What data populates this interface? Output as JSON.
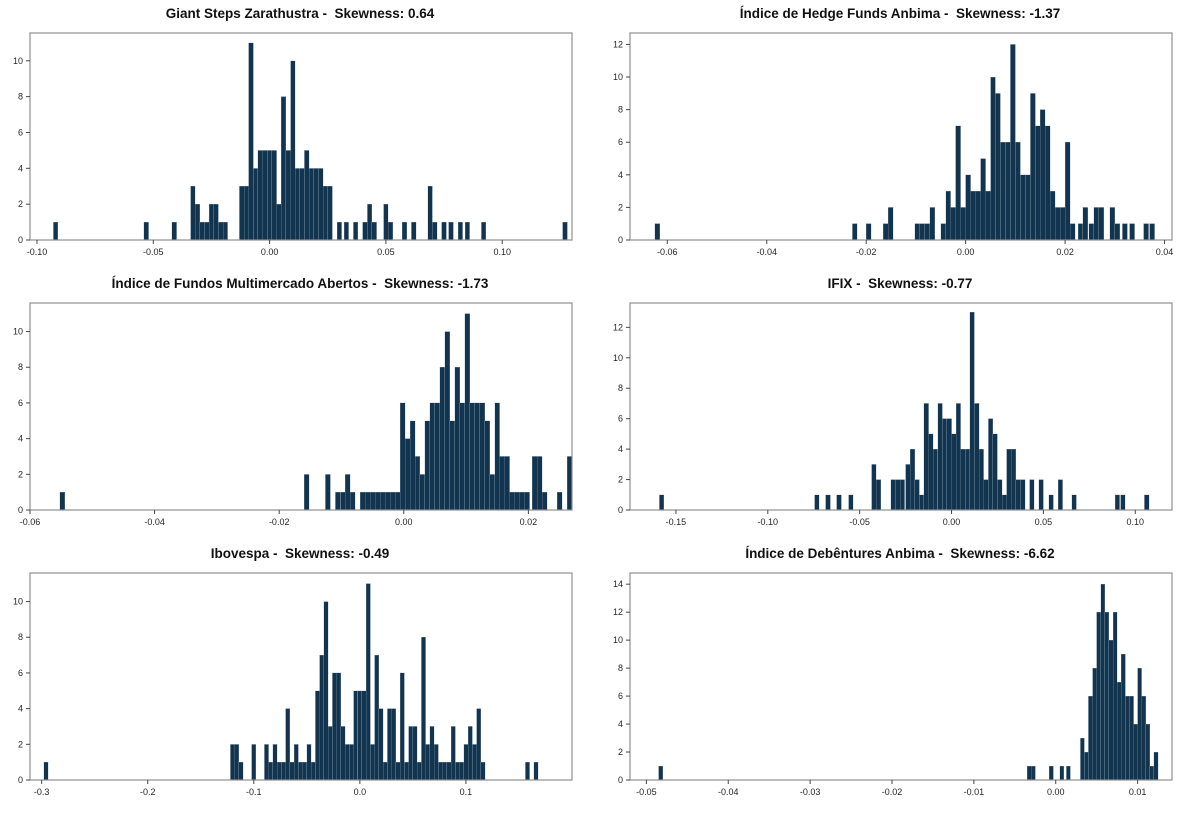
{
  "figure": {
    "kind": "matplotlib-style histogram grid",
    "rows": 3,
    "cols": 2,
    "background": "#ffffff"
  },
  "colors": {
    "bar": "#12344e",
    "bar_edge": "rgba(150,172,190,0.55)",
    "spine": "#8f8f8f",
    "tick_mark": "#444444",
    "tick_label": "#262626",
    "title": "#111111"
  },
  "chart_data": [
    {
      "type": "bar",
      "subtype": "histogram",
      "title": "Giant Steps Zarathustra -  Skewness: 0.64",
      "series_name": "Giant Steps Zarathustra",
      "skewness": 0.64,
      "xlim": [
        -0.103,
        0.13
      ],
      "ylim": [
        0,
        11.55
      ],
      "bin_width": 0.002,
      "xticks": {
        "values": [
          -0.1,
          -0.05,
          0.0,
          0.05,
          0.1
        ],
        "labels": [
          "-0.10",
          "-0.05",
          "0.00",
          "0.05",
          "0.10"
        ]
      },
      "yticks": [
        0,
        2,
        4,
        6,
        8,
        10
      ],
      "bars": [
        [
          -0.093,
          1
        ],
        [
          -0.054,
          1
        ],
        [
          -0.042,
          1
        ],
        [
          -0.034,
          3
        ],
        [
          -0.032,
          2
        ],
        [
          -0.03,
          1
        ],
        [
          -0.028,
          1
        ],
        [
          -0.026,
          2
        ],
        [
          -0.024,
          2
        ],
        [
          -0.022,
          1
        ],
        [
          -0.02,
          1
        ],
        [
          -0.013,
          3
        ],
        [
          -0.011,
          3
        ],
        [
          -0.009,
          11
        ],
        [
          -0.007,
          4
        ],
        [
          -0.005,
          5
        ],
        [
          -0.003,
          5
        ],
        [
          -0.001,
          5
        ],
        [
          0.001,
          5
        ],
        [
          0.003,
          2
        ],
        [
          0.005,
          8
        ],
        [
          0.007,
          5
        ],
        [
          0.009,
          10
        ],
        [
          0.011,
          4
        ],
        [
          0.013,
          4
        ],
        [
          0.015,
          5
        ],
        [
          0.017,
          4
        ],
        [
          0.019,
          4
        ],
        [
          0.021,
          4
        ],
        [
          0.023,
          3
        ],
        [
          0.025,
          3
        ],
        [
          0.029,
          1
        ],
        [
          0.032,
          1
        ],
        [
          0.036,
          1
        ],
        [
          0.04,
          1
        ],
        [
          0.042,
          2
        ],
        [
          0.044,
          1
        ],
        [
          0.049,
          2
        ],
        [
          0.051,
          1
        ],
        [
          0.057,
          1
        ],
        [
          0.061,
          1
        ],
        [
          0.068,
          3
        ],
        [
          0.07,
          1
        ],
        [
          0.074,
          1
        ],
        [
          0.077,
          1
        ],
        [
          0.081,
          1
        ],
        [
          0.084,
          1
        ],
        [
          0.091,
          1
        ],
        [
          0.126,
          1
        ]
      ]
    },
    {
      "type": "bar",
      "subtype": "histogram",
      "title": "Índice de Hedge Funds Anbima -  Skewness: -1.37",
      "series_name": "Índice de Hedge Funds Anbima",
      "skewness": -1.37,
      "xlim": [
        -0.0675,
        0.0415
      ],
      "ylim": [
        0,
        12.7
      ],
      "bin_width": 0.001,
      "xticks": {
        "values": [
          -0.06,
          -0.04,
          -0.02,
          0.0,
          0.02,
          0.04
        ],
        "labels": [
          "-0.06",
          "-0.04",
          "-0.02",
          "0.00",
          "0.02",
          "0.04"
        ]
      },
      "yticks": [
        0,
        2,
        4,
        6,
        8,
        10,
        12
      ],
      "bars": [
        [
          -0.0625,
          1
        ],
        [
          -0.0228,
          1
        ],
        [
          -0.02,
          1
        ],
        [
          -0.0166,
          1
        ],
        [
          -0.0156,
          2
        ],
        [
          -0.0102,
          1
        ],
        [
          -0.0092,
          1
        ],
        [
          -0.0082,
          1
        ],
        [
          -0.0072,
          2
        ],
        [
          -0.005,
          1
        ],
        [
          -0.004,
          3
        ],
        [
          -0.003,
          2
        ],
        [
          -0.002,
          7
        ],
        [
          -0.001,
          2
        ],
        [
          0.0,
          4
        ],
        [
          0.001,
          3
        ],
        [
          0.002,
          3
        ],
        [
          0.003,
          5
        ],
        [
          0.004,
          3
        ],
        [
          0.005,
          10
        ],
        [
          0.006,
          9
        ],
        [
          0.007,
          6
        ],
        [
          0.008,
          6
        ],
        [
          0.009,
          12
        ],
        [
          0.01,
          6
        ],
        [
          0.011,
          4
        ],
        [
          0.012,
          4
        ],
        [
          0.013,
          9
        ],
        [
          0.014,
          7
        ],
        [
          0.015,
          8
        ],
        [
          0.016,
          7
        ],
        [
          0.017,
          3
        ],
        [
          0.018,
          2
        ],
        [
          0.019,
          2
        ],
        [
          0.02,
          6
        ],
        [
          0.021,
          1
        ],
        [
          0.0226,
          1
        ],
        [
          0.0236,
          2
        ],
        [
          0.0248,
          1
        ],
        [
          0.0258,
          2
        ],
        [
          0.0268,
          2
        ],
        [
          0.029,
          2
        ],
        [
          0.03,
          1
        ],
        [
          0.0315,
          1
        ],
        [
          0.033,
          1
        ],
        [
          0.0358,
          1
        ],
        [
          0.037,
          1
        ]
      ]
    },
    {
      "type": "bar",
      "subtype": "histogram",
      "title": "Índice de Fundos Multimercado Abertos -  Skewness: -1.73",
      "series_name": "Índice de Fundos Multimercado Abertos",
      "skewness": -1.73,
      "xlim": [
        -0.06,
        0.027
      ],
      "ylim": [
        0,
        11.6
      ],
      "bin_width": 0.0008,
      "xticks": {
        "values": [
          -0.06,
          -0.04,
          -0.02,
          0.0,
          0.02
        ],
        "labels": [
          "-0.06",
          "-0.04",
          "-0.02",
          "0.00",
          "0.02"
        ]
      },
      "yticks": [
        0,
        2,
        4,
        6,
        8,
        10
      ],
      "bars": [
        [
          -0.0552,
          1
        ],
        [
          -0.016,
          2
        ],
        [
          -0.0126,
          2
        ],
        [
          -0.011,
          1
        ],
        [
          -0.0102,
          1
        ],
        [
          -0.0094,
          2
        ],
        [
          -0.0086,
          1
        ],
        [
          -0.007,
          1
        ],
        [
          -0.0062,
          1
        ],
        [
          -0.0054,
          1
        ],
        [
          -0.0046,
          1
        ],
        [
          -0.0038,
          1
        ],
        [
          -0.003,
          1
        ],
        [
          -0.0022,
          1
        ],
        [
          -0.0014,
          1
        ],
        [
          -0.0006,
          6
        ],
        [
          0.0002,
          4
        ],
        [
          0.001,
          5
        ],
        [
          0.0018,
          3
        ],
        [
          0.0026,
          2
        ],
        [
          0.0034,
          5
        ],
        [
          0.0042,
          6
        ],
        [
          0.005,
          6
        ],
        [
          0.0058,
          8
        ],
        [
          0.0066,
          10
        ],
        [
          0.0074,
          5
        ],
        [
          0.0082,
          8
        ],
        [
          0.009,
          6
        ],
        [
          0.0098,
          11
        ],
        [
          0.0106,
          6
        ],
        [
          0.0114,
          6
        ],
        [
          0.0122,
          6
        ],
        [
          0.013,
          5
        ],
        [
          0.0138,
          2
        ],
        [
          0.0146,
          6
        ],
        [
          0.0154,
          3
        ],
        [
          0.0162,
          3
        ],
        [
          0.017,
          1
        ],
        [
          0.0178,
          1
        ],
        [
          0.0186,
          1
        ],
        [
          0.0194,
          1
        ],
        [
          0.0206,
          3
        ],
        [
          0.0214,
          3
        ],
        [
          0.0222,
          1
        ],
        [
          0.0246,
          1
        ],
        [
          0.0262,
          3
        ]
      ]
    },
    {
      "type": "bar",
      "subtype": "histogram",
      "title": "IFIX -  Skewness: -0.77",
      "series_name": "IFIX",
      "skewness": -0.77,
      "xlim": [
        -0.175,
        0.12
      ],
      "ylim": [
        0,
        13.6
      ],
      "bin_width": 0.0025,
      "xticks": {
        "values": [
          -0.15,
          -0.1,
          -0.05,
          0.0,
          0.05,
          0.1
        ],
        "labels": [
          "-0.15",
          "-0.10",
          "-0.05",
          "0.00",
          "0.05",
          "0.10"
        ]
      },
      "yticks": [
        0,
        2,
        4,
        6,
        8,
        10,
        12
      ],
      "bars": [
        [
          -0.159,
          1
        ],
        [
          -0.0745,
          1
        ],
        [
          -0.0685,
          1
        ],
        [
          -0.0625,
          1
        ],
        [
          -0.056,
          1
        ],
        [
          -0.0435,
          3
        ],
        [
          -0.041,
          2
        ],
        [
          -0.033,
          2
        ],
        [
          -0.0305,
          2
        ],
        [
          -0.028,
          2
        ],
        [
          -0.025,
          3
        ],
        [
          -0.0225,
          4
        ],
        [
          -0.02,
          2
        ],
        [
          -0.0175,
          1
        ],
        [
          -0.015,
          7
        ],
        [
          -0.0125,
          5
        ],
        [
          -0.01,
          4
        ],
        [
          -0.0075,
          7
        ],
        [
          -0.005,
          6
        ],
        [
          -0.0025,
          6
        ],
        [
          0.0,
          5
        ],
        [
          0.0025,
          7
        ],
        [
          0.005,
          4
        ],
        [
          0.0075,
          4
        ],
        [
          0.01,
          13
        ],
        [
          0.0125,
          7
        ],
        [
          0.015,
          4
        ],
        [
          0.0175,
          2
        ],
        [
          0.02,
          6
        ],
        [
          0.0225,
          5
        ],
        [
          0.025,
          2
        ],
        [
          0.0275,
          1
        ],
        [
          0.03,
          4
        ],
        [
          0.0325,
          4
        ],
        [
          0.035,
          2
        ],
        [
          0.0375,
          2
        ],
        [
          0.0425,
          2
        ],
        [
          0.0475,
          2
        ],
        [
          0.053,
          1
        ],
        [
          0.058,
          2
        ],
        [
          0.0655,
          1
        ],
        [
          0.089,
          1
        ],
        [
          0.092,
          1
        ],
        [
          0.105,
          1
        ]
      ]
    },
    {
      "type": "bar",
      "subtype": "histogram",
      "title": "Ibovespa -  Skewness: -0.49",
      "series_name": "Ibovespa",
      "skewness": -0.49,
      "xlim": [
        -0.311,
        0.2
      ],
      "ylim": [
        0,
        11.6
      ],
      "bin_width": 0.004,
      "xticks": {
        "values": [
          -0.3,
          -0.2,
          -0.1,
          0.0,
          0.1
        ],
        "labels": [
          "-0.3",
          "-0.2",
          "-0.1",
          "0.0",
          "0.1"
        ]
      },
      "yticks": [
        0,
        2,
        4,
        6,
        8,
        10
      ],
      "bars": [
        [
          -0.298,
          1
        ],
        [
          -0.122,
          2
        ],
        [
          -0.118,
          2
        ],
        [
          -0.114,
          1
        ],
        [
          -0.102,
          2
        ],
        [
          -0.09,
          2
        ],
        [
          -0.086,
          1
        ],
        [
          -0.082,
          2
        ],
        [
          -0.078,
          1
        ],
        [
          -0.074,
          1
        ],
        [
          -0.07,
          4
        ],
        [
          -0.066,
          1
        ],
        [
          -0.062,
          2
        ],
        [
          -0.058,
          1
        ],
        [
          -0.054,
          1
        ],
        [
          -0.05,
          2
        ],
        [
          -0.046,
          1
        ],
        [
          -0.042,
          5
        ],
        [
          -0.038,
          7
        ],
        [
          -0.034,
          10
        ],
        [
          -0.03,
          3
        ],
        [
          -0.026,
          6
        ],
        [
          -0.022,
          6
        ],
        [
          -0.018,
          3
        ],
        [
          -0.014,
          2
        ],
        [
          -0.01,
          2
        ],
        [
          -0.006,
          5
        ],
        [
          -0.002,
          5
        ],
        [
          0.002,
          5
        ],
        [
          0.006,
          11
        ],
        [
          0.01,
          2
        ],
        [
          0.014,
          7
        ],
        [
          0.018,
          4
        ],
        [
          0.022,
          1
        ],
        [
          0.026,
          4
        ],
        [
          0.03,
          4
        ],
        [
          0.034,
          1
        ],
        [
          0.038,
          6
        ],
        [
          0.042,
          1
        ],
        [
          0.046,
          3
        ],
        [
          0.05,
          3
        ],
        [
          0.054,
          1
        ],
        [
          0.058,
          8
        ],
        [
          0.062,
          2
        ],
        [
          0.066,
          3
        ],
        [
          0.07,
          2
        ],
        [
          0.074,
          1
        ],
        [
          0.078,
          1
        ],
        [
          0.082,
          1
        ],
        [
          0.086,
          3
        ],
        [
          0.09,
          1
        ],
        [
          0.094,
          1
        ],
        [
          0.098,
          2
        ],
        [
          0.102,
          3
        ],
        [
          0.106,
          2
        ],
        [
          0.11,
          4
        ],
        [
          0.114,
          1
        ],
        [
          0.156,
          1
        ],
        [
          0.164,
          1
        ]
      ]
    },
    {
      "type": "bar",
      "subtype": "histogram",
      "title": "Índice de Debêntures Anbima -  Skewness: -6.62",
      "series_name": "Índice de Debêntures Anbima",
      "skewness": -6.62,
      "xlim": [
        -0.052,
        0.0142
      ],
      "ylim": [
        0,
        14.8
      ],
      "bin_width": 0.0005,
      "xticks": {
        "values": [
          -0.05,
          -0.04,
          -0.03,
          -0.02,
          -0.01,
          0.0,
          0.01
        ],
        "labels": [
          "-0.05",
          "-0.04",
          "-0.03",
          "-0.02",
          "-0.01",
          "0.00",
          "0.01"
        ]
      },
      "yticks": [
        0,
        2,
        4,
        6,
        8,
        10,
        12,
        14
      ],
      "bars": [
        [
          -0.0485,
          1
        ],
        [
          -0.0035,
          1
        ],
        [
          -0.003,
          1
        ],
        [
          -0.0008,
          1
        ],
        [
          0.0005,
          1
        ],
        [
          0.0013,
          1
        ],
        [
          0.003,
          3
        ],
        [
          0.0035,
          2
        ],
        [
          0.004,
          6
        ],
        [
          0.0045,
          8
        ],
        [
          0.005,
          12
        ],
        [
          0.0055,
          14
        ],
        [
          0.006,
          12
        ],
        [
          0.0065,
          10
        ],
        [
          0.007,
          12
        ],
        [
          0.0075,
          7
        ],
        [
          0.008,
          9
        ],
        [
          0.0085,
          6
        ],
        [
          0.009,
          6
        ],
        [
          0.0095,
          4
        ],
        [
          0.01,
          8
        ],
        [
          0.0105,
          6
        ],
        [
          0.011,
          4
        ],
        [
          0.0115,
          1
        ],
        [
          0.012,
          2
        ]
      ]
    }
  ]
}
